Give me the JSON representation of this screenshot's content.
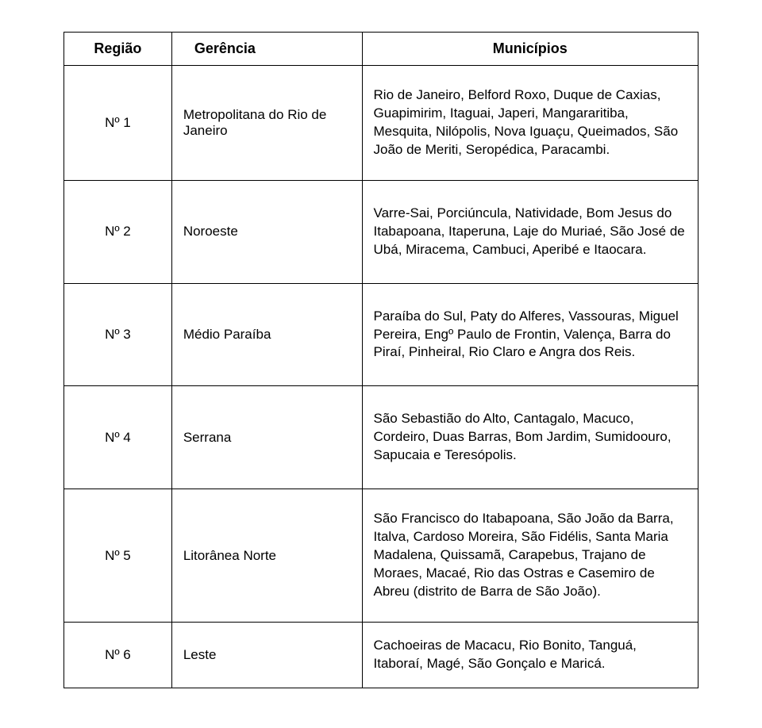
{
  "table": {
    "columns": {
      "regiao": "Região",
      "gerencia": "Gerência",
      "municipios": "Municípios"
    },
    "col_widths_pct": [
      17,
      30,
      53
    ],
    "border_color": "#000000",
    "background_color": "#ffffff",
    "font_family": "Arial",
    "header_fontsize": 18,
    "cell_fontsize": 17,
    "rows": [
      {
        "regiao": "Nº 1",
        "gerencia": "Metropolitana do Rio de Janeiro",
        "municipios": "Rio de Janeiro, Belford Roxo, Duque de Caxias, Guapimirim, Itaguai, Japeri, Mangararitiba, Mesquita, Nilópolis, Nova Iguaçu, Queimados, São João de Meriti, Seropédica, Paracambi."
      },
      {
        "regiao": "Nº 2",
        "gerencia": "Noroeste",
        "municipios": "Varre-Sai, Porciúncula, Natividade, Bom Jesus do Itabapoana, Itaperuna, Laje do Muriaé, São José de Ubá, Miracema, Cambuci, Aperibé e Itaocara."
      },
      {
        "regiao": "Nº 3",
        "gerencia": "Médio Paraíba",
        "municipios": "Paraíba do Sul, Paty do Alferes, Vassouras, Miguel Pereira, Engº Paulo de Frontin, Valença, Barra do Piraí, Pinheiral, Rio Claro e Angra dos Reis."
      },
      {
        "regiao": "Nº 4",
        "gerencia": "Serrana",
        "municipios": "São Sebastião do Alto, Cantagalo, Macuco, Cordeiro, Duas Barras, Bom Jardim, Sumidoouro, Sapucaia e Teresópolis."
      },
      {
        "regiao": "Nº 5",
        "gerencia": "Litorânea Norte",
        "municipios": "São Francisco do Itabapoana, São João da Barra, Italva, Cardoso Moreira, São Fidélis, Santa Maria Madalena, Quissamã, Carapebus, Trajano de Moraes, Macaé, Rio das Ostras e Casemiro de Abreu (distrito de Barra de São João)."
      },
      {
        "regiao": "Nº 6",
        "gerencia": "Leste",
        "municipios": "Cachoeiras de Macacu, Rio Bonito, Tanguá, Itaboraí, Magé, São Gonçalo e Maricá."
      }
    ]
  }
}
